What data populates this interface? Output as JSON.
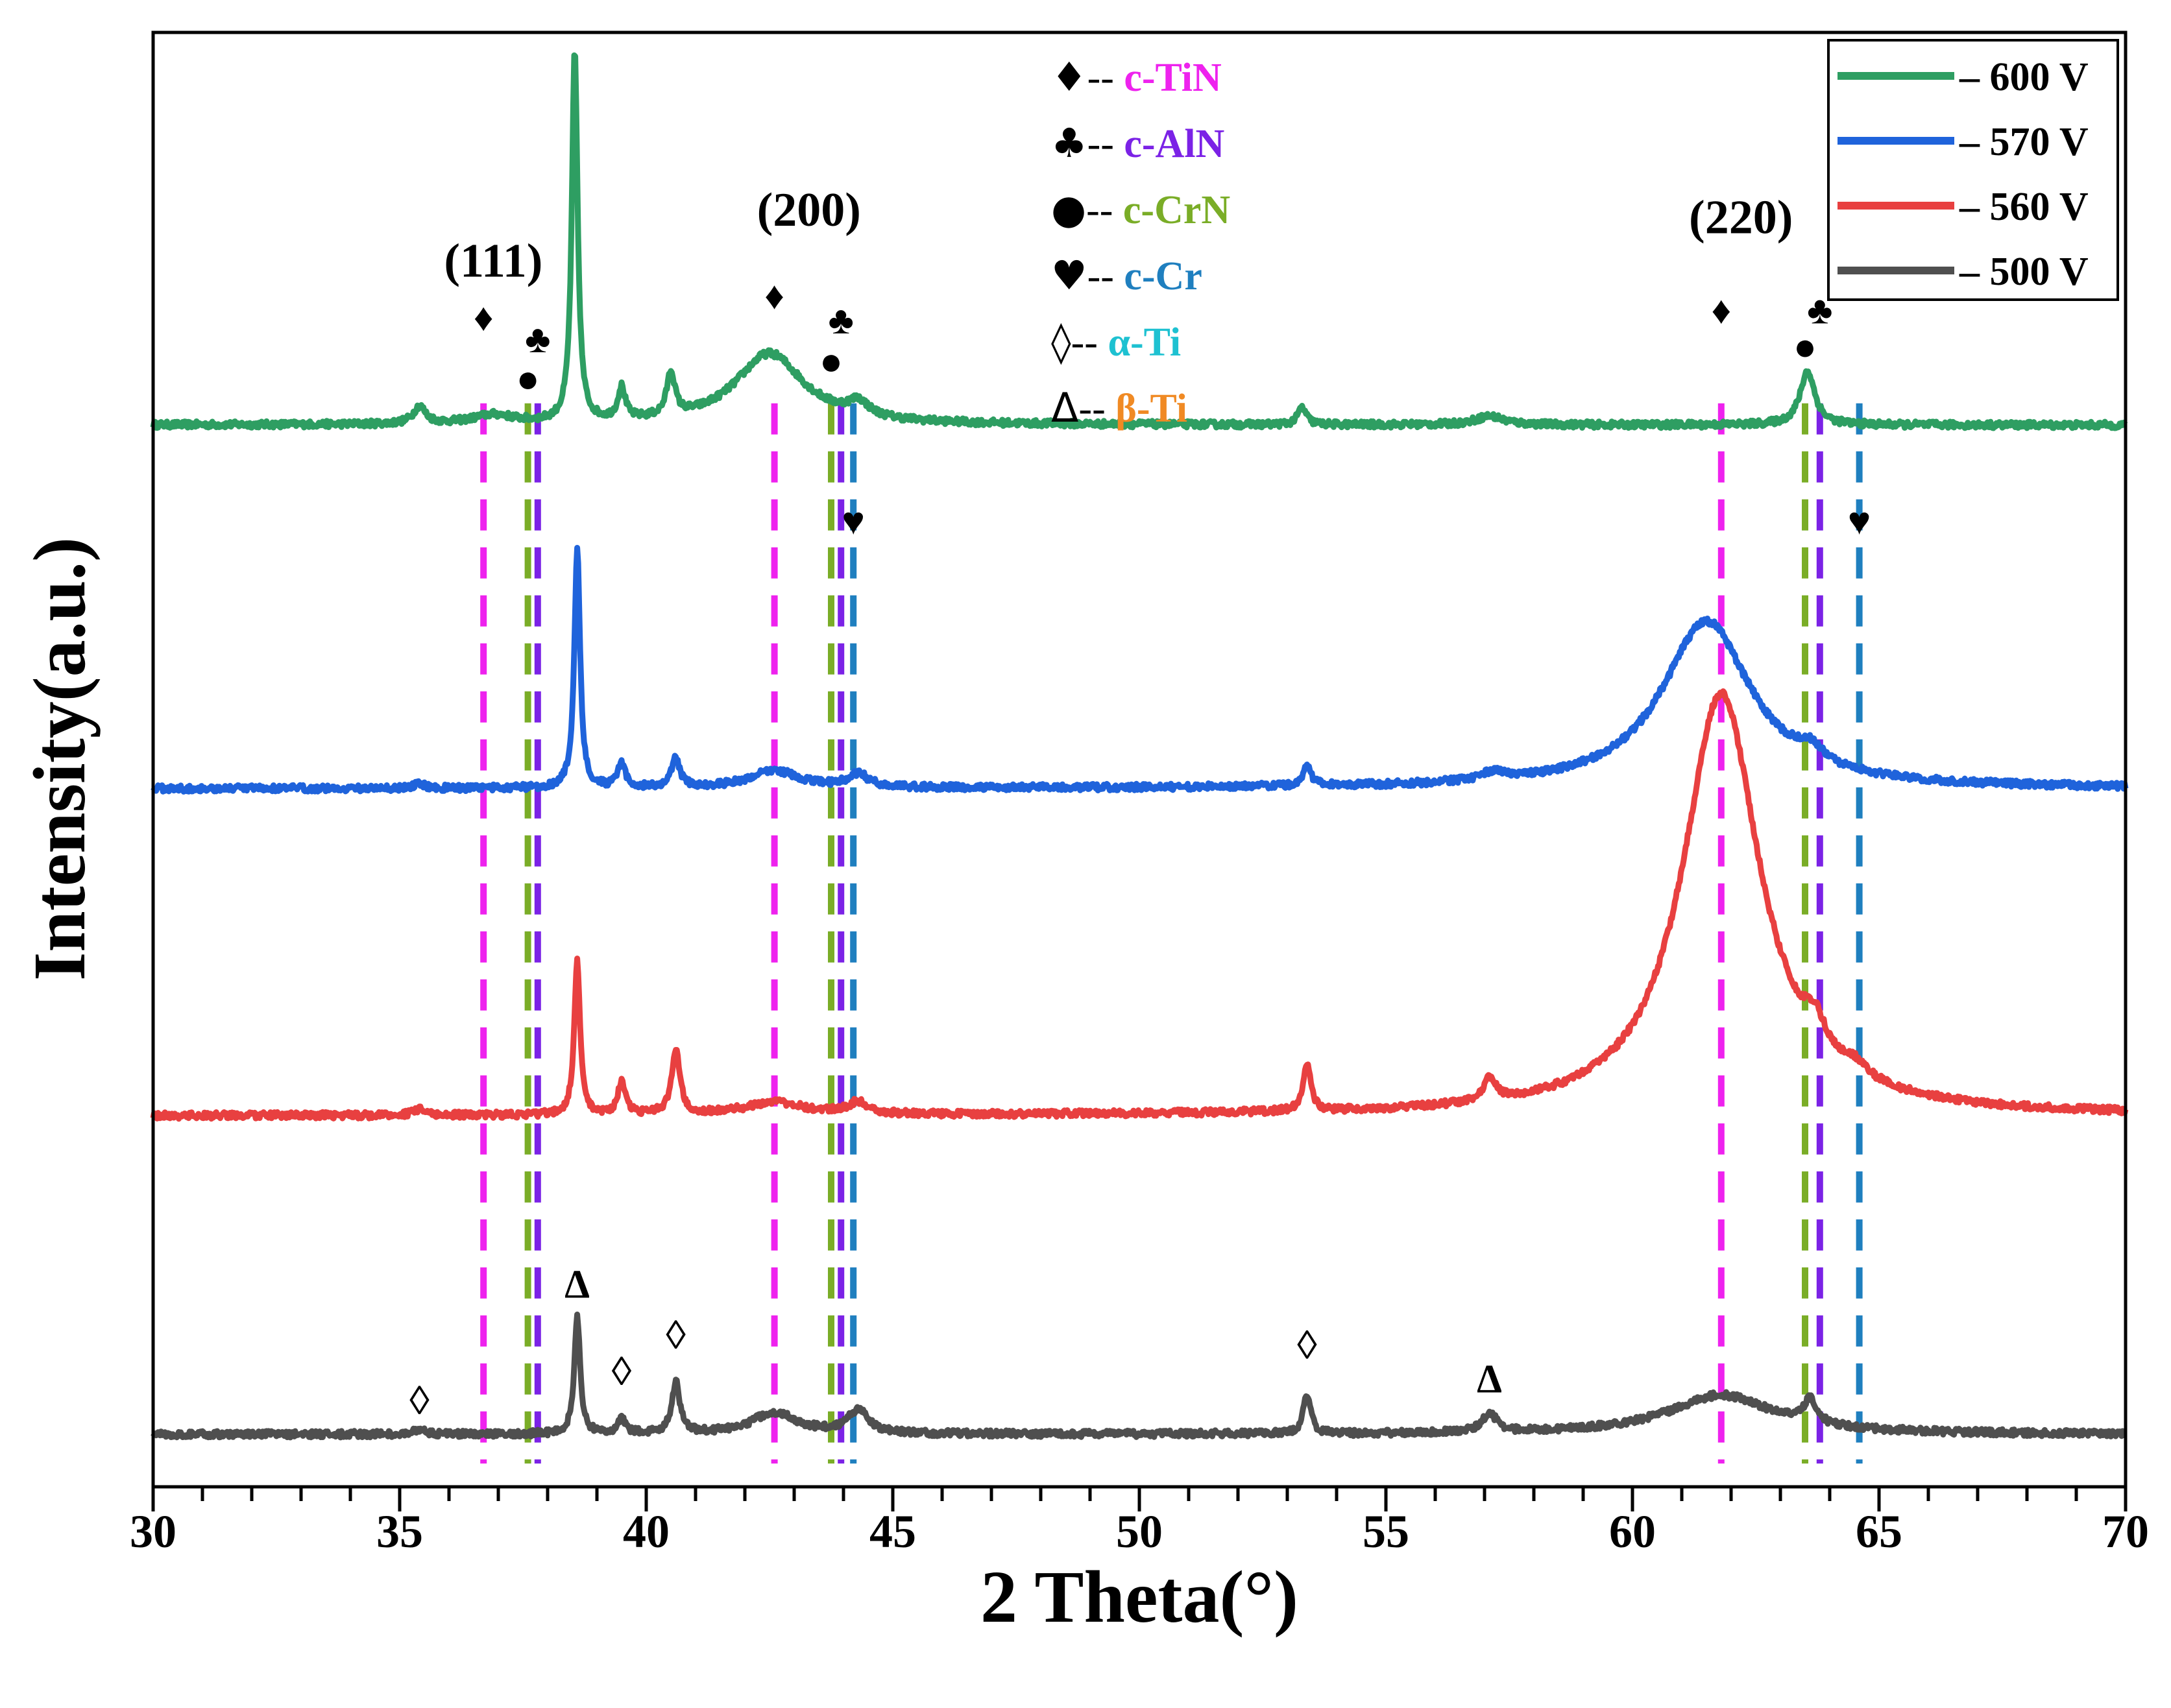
{
  "chart_data": {
    "type": "line",
    "title": "",
    "xlabel": "2 Theta(°)",
    "ylabel": "Intensity(a.u.)",
    "xlim": [
      30,
      70
    ],
    "ylim": [
      0,
      1
    ],
    "xticks": [
      30,
      35,
      40,
      45,
      50,
      55,
      60,
      65,
      70
    ],
    "xtick_labels": [
      "30",
      "35",
      "40",
      "45",
      "50",
      "55",
      "60",
      "65",
      "70"
    ],
    "grid": false,
    "series": [
      {
        "name": "600 V",
        "legend_label": "– 600 V",
        "color": "#2e9e62",
        "baseline": 0.73,
        "peaks": [
          [
            35.4,
            0.012,
            0.15
          ],
          [
            36.9,
            0.006,
            0.5
          ],
          [
            38.55,
            0.255,
            0.07
          ],
          [
            39.5,
            0.022,
            0.09
          ],
          [
            40.5,
            0.03,
            0.1
          ],
          [
            42.5,
            0.049,
            0.85
          ],
          [
            44.3,
            0.01,
            0.25
          ],
          [
            53.3,
            0.012,
            0.1
          ],
          [
            57.1,
            0.006,
            0.35
          ],
          [
            63.55,
            0.037,
            0.18
          ]
        ]
      },
      {
        "name": "570 V",
        "legend_label": "– 570 V",
        "color": "#1f63db",
        "baseline": 0.48,
        "peaks": [
          [
            35.4,
            0.003,
            0.15
          ],
          [
            38.6,
            0.165,
            0.07
          ],
          [
            39.5,
            0.016,
            0.09
          ],
          [
            40.6,
            0.02,
            0.1
          ],
          [
            42.6,
            0.012,
            0.6
          ],
          [
            44.3,
            0.009,
            0.25
          ],
          [
            53.4,
            0.014,
            0.1
          ],
          [
            57.2,
            0.006,
            0.3
          ],
          [
            61.5,
            0.115,
            1.1
          ],
          [
            63.6,
            0.01,
            0.3
          ]
        ]
      },
      {
        "name": "560 V",
        "legend_label": "– 560 V",
        "color": "#e84040",
        "baseline": 0.255,
        "peaks": [
          [
            35.4,
            0.004,
            0.15
          ],
          [
            38.6,
            0.105,
            0.07
          ],
          [
            39.5,
            0.022,
            0.09
          ],
          [
            40.6,
            0.045,
            0.1
          ],
          [
            42.6,
            0.009,
            0.7
          ],
          [
            44.3,
            0.008,
            0.25
          ],
          [
            53.4,
            0.032,
            0.09
          ],
          [
            57.1,
            0.016,
            0.15
          ],
          [
            61.8,
            0.29,
            0.95
          ],
          [
            63.7,
            0.02,
            0.25
          ],
          [
            64.5,
            0.008,
            0.3
          ]
        ]
      },
      {
        "name": "500 V",
        "legend_label": "– 500 V",
        "color": "#4f4f4f",
        "baseline": 0.036,
        "peaks": [
          [
            35.4,
            0.003,
            0.15
          ],
          [
            38.6,
            0.082,
            0.07
          ],
          [
            39.5,
            0.01,
            0.09
          ],
          [
            40.6,
            0.035,
            0.1
          ],
          [
            42.6,
            0.015,
            0.55
          ],
          [
            44.3,
            0.016,
            0.25
          ],
          [
            53.4,
            0.027,
            0.09
          ],
          [
            57.1,
            0.013,
            0.18
          ],
          [
            61.8,
            0.027,
            1.3
          ],
          [
            63.6,
            0.016,
            0.15
          ]
        ]
      }
    ],
    "reference_lines": [
      {
        "phase": "c-TiN",
        "x": 36.7,
        "color": "#ee22ee"
      },
      {
        "phase": "c-CrN",
        "x": 37.6,
        "color": "#7aad27"
      },
      {
        "phase": "c-AlN",
        "x": 37.8,
        "color": "#7b22e6"
      },
      {
        "phase": "c-TiN",
        "x": 42.6,
        "color": "#ee22ee"
      },
      {
        "phase": "c-CrN",
        "x": 43.75,
        "color": "#7aad27"
      },
      {
        "phase": "c-AlN",
        "x": 43.95,
        "color": "#7b22e6"
      },
      {
        "phase": "c-Cr",
        "x": 44.2,
        "color": "#1f7fbf"
      },
      {
        "phase": "c-TiN",
        "x": 61.8,
        "color": "#ee22ee"
      },
      {
        "phase": "c-CrN",
        "x": 63.5,
        "color": "#7aad27"
      },
      {
        "phase": "c-AlN",
        "x": 63.8,
        "color": "#7b22e6"
      },
      {
        "phase": "c-Cr",
        "x": 64.6,
        "color": "#1f7fbf"
      }
    ],
    "phase_legend": [
      {
        "symbol": "♦",
        "separator": "--",
        "label": "c-TiN",
        "color": "#ee22ee"
      },
      {
        "symbol": "♣",
        "separator": "--",
        "label": "c-AlN",
        "color": "#7b22e6"
      },
      {
        "symbol": "●",
        "separator": "--",
        "label": "c-CrN",
        "color": "#7aad27"
      },
      {
        "symbol": "♥",
        "separator": "--",
        "label": "c-Cr",
        "color": "#1f7fbf"
      },
      {
        "symbol": "◊",
        "separator": "--",
        "label": "α-Ti",
        "color": "#1ec1d1"
      },
      {
        "symbol": "Δ",
        "separator": "--",
        "label": "β-Ti",
        "color": "#f08a24"
      }
    ],
    "plane_labels": [
      {
        "text": "(111)",
        "x": 36.9,
        "y": 0.832
      },
      {
        "text": "(200)",
        "x": 43.3,
        "y": 0.867
      },
      {
        "text": "(220)",
        "x": 62.2,
        "y": 0.862
      }
    ],
    "annotations": [
      {
        "symbol": "♦",
        "x": 36.7,
        "y": 0.795
      },
      {
        "symbol": "♣",
        "x": 37.8,
        "y": 0.78
      },
      {
        "symbol": "●",
        "x": 37.6,
        "y": 0.753
      },
      {
        "symbol": "♦",
        "x": 42.6,
        "y": 0.81
      },
      {
        "symbol": "♣",
        "x": 43.95,
        "y": 0.793
      },
      {
        "symbol": "●",
        "x": 43.75,
        "y": 0.765
      },
      {
        "symbol": "♥",
        "x": 44.2,
        "y": 0.655
      },
      {
        "symbol": "♦",
        "x": 61.8,
        "y": 0.8
      },
      {
        "symbol": "●",
        "x": 63.5,
        "y": 0.775
      },
      {
        "symbol": "♣",
        "x": 63.8,
        "y": 0.8
      },
      {
        "symbol": "♥",
        "x": 64.6,
        "y": 0.655
      },
      {
        "symbol": "◊",
        "x": 35.4,
        "y": 0.05
      },
      {
        "symbol": "Δ",
        "x": 38.6,
        "y": 0.13
      },
      {
        "symbol": "◊",
        "x": 39.5,
        "y": 0.07
      },
      {
        "symbol": "◊",
        "x": 40.6,
        "y": 0.095
      },
      {
        "symbol": "◊",
        "x": 53.4,
        "y": 0.088
      },
      {
        "symbol": "Δ",
        "x": 57.1,
        "y": 0.065
      }
    ]
  }
}
